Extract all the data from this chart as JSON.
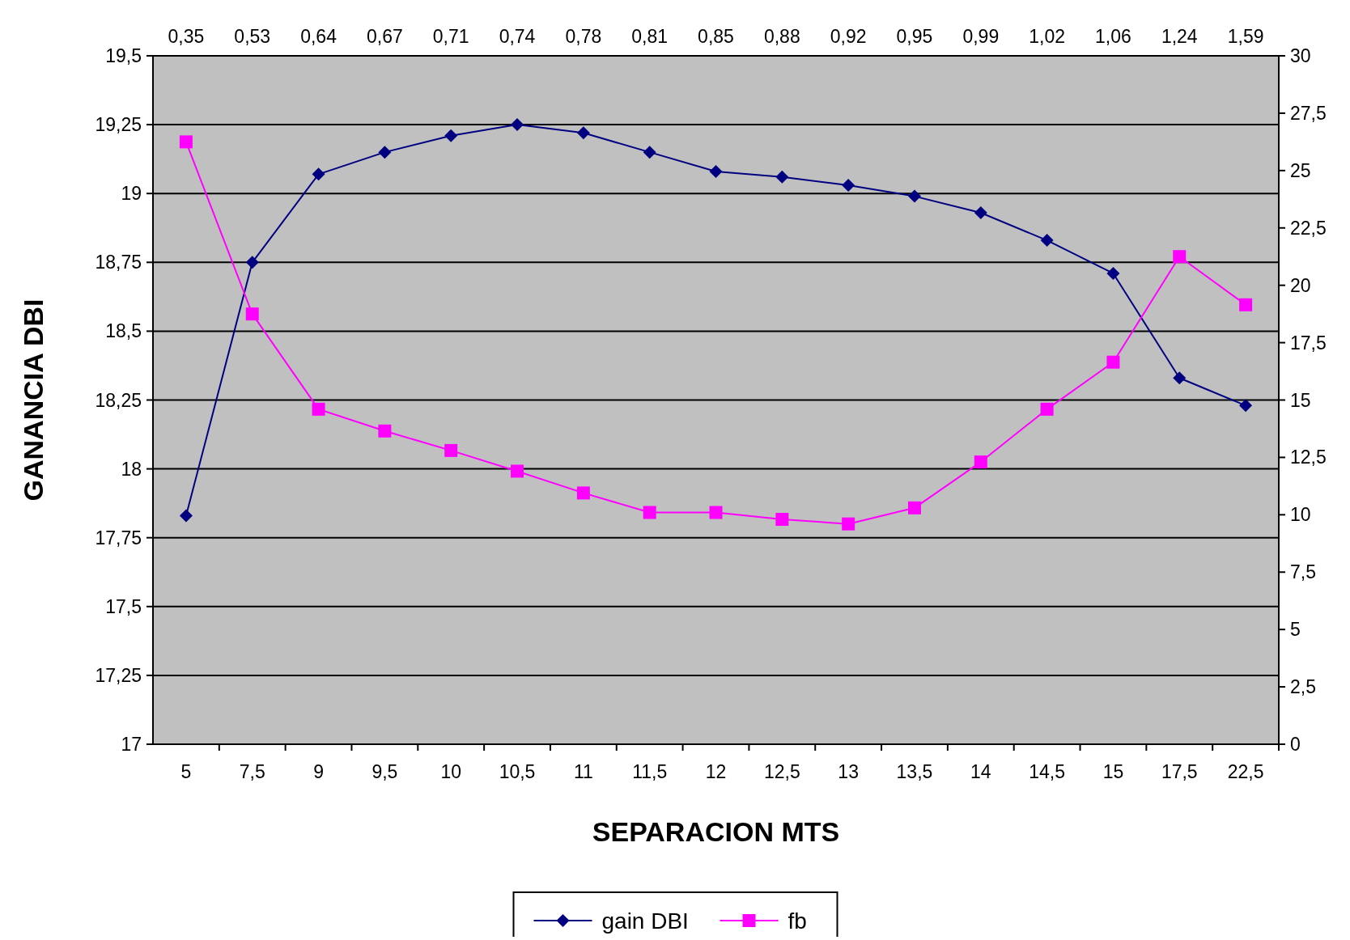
{
  "chart_data": {
    "type": "line",
    "xlabel": "SEPARACION MTS",
    "ylabel": "GANANCIA DBI",
    "categories": [
      "5",
      "7,5",
      "9",
      "9,5",
      "10",
      "10,5",
      "11",
      "11,5",
      "12",
      "12,5",
      "13",
      "13,5",
      "14",
      "14,5",
      "15",
      "17,5",
      "22,5"
    ],
    "annotations": [
      "0,35",
      "0,53",
      "0,64",
      "0,67",
      "0,71",
      "0,74",
      "0,78",
      "0,81",
      "0,85",
      "0,88",
      "0,92",
      "0,95",
      "0,99",
      "1,02",
      "1,06",
      "1,24",
      "1,59"
    ],
    "series": [
      {
        "name": "gain DBI",
        "color": "#000080",
        "marker": "diamond",
        "values": [
          17.83,
          18.75,
          19.07,
          19.15,
          19.21,
          19.25,
          19.22,
          19.15,
          19.08,
          19.06,
          19.03,
          18.99,
          18.93,
          18.83,
          18.71,
          18.33,
          18.23
        ]
      },
      {
        "name": "fb",
        "color": "#ff00ff",
        "marker": "square",
        "axis": "y2",
        "values": [
          26.25,
          18.75,
          14.6,
          13.65,
          12.8,
          11.9,
          10.95,
          10.1,
          10.1,
          9.8,
          9.6,
          10.3,
          12.3,
          14.6,
          16.65,
          21.25,
          19.15
        ]
      }
    ],
    "ylim": [
      17,
      19.5
    ],
    "yticks": [
      17,
      {
        "value": 17.25,
        "label": "17,25"
      },
      {
        "value": 17.5,
        "label": "17,5"
      },
      {
        "value": 17.75,
        "label": "17,75"
      },
      18,
      {
        "value": 18.25,
        "label": "18,25"
      },
      {
        "value": 18.5,
        "label": "18,5"
      },
      {
        "value": 18.75,
        "label": "18,75"
      },
      19,
      {
        "value": 19.25,
        "label": "19,25"
      },
      {
        "value": 19.5,
        "label": "19,5"
      }
    ],
    "y2lim": [
      0,
      30
    ],
    "y2ticks": [
      0,
      {
        "value": 2.5,
        "label": "2,5"
      },
      5,
      {
        "value": 7.5,
        "label": "7,5"
      },
      10,
      {
        "value": 12.5,
        "label": "12,5"
      },
      15,
      {
        "value": 17.5,
        "label": "17,5"
      },
      20,
      {
        "value": 22.5,
        "label": "22,5"
      },
      25,
      {
        "value": 27.5,
        "label": "27,5"
      },
      30
    ],
    "grid": "y",
    "legend": "bottom"
  }
}
